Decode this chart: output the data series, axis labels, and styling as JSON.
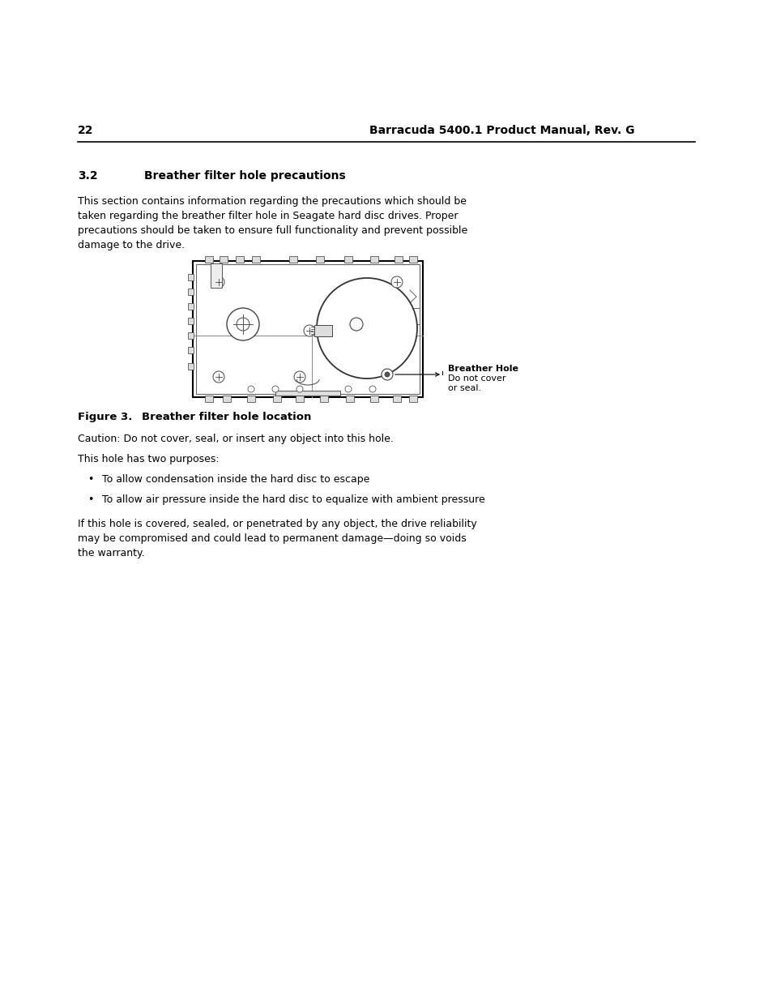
{
  "page_number": "22",
  "header_title": "Barracuda 5400.1 Product Manual, Rev. G",
  "section_number": "3.2",
  "section_title": "Breather filter hole precautions",
  "intro_lines": [
    "This section contains information regarding the precautions which should be",
    "taken regarding the breather filter hole in Seagate hard disc drives. Proper",
    "precautions should be taken to ensure full functionality and prevent possible",
    "damage to the drive."
  ],
  "figure_label": "Figure 3.",
  "figure_title": "Breather filter hole location",
  "caution_text": "Caution: Do not cover, seal, or insert any object into this hole.",
  "purpose_intro": "This hole has two purposes:",
  "bullet1": "To allow condensation inside the hard disc to escape",
  "bullet2": "To allow air pressure inside the hard disc to equalize with ambient pressure",
  "closing_lines": [
    "If this hole is covered, sealed, or penetrated by any object, the drive reliability",
    "may be compromised and could lead to permanent damage—doing so voids",
    "the warranty."
  ],
  "annotation_bold": "Breather Hole",
  "annotation_line1": "Do not cover",
  "annotation_line2": "or seal.",
  "bg_color": "#ffffff",
  "text_color": "#000000"
}
